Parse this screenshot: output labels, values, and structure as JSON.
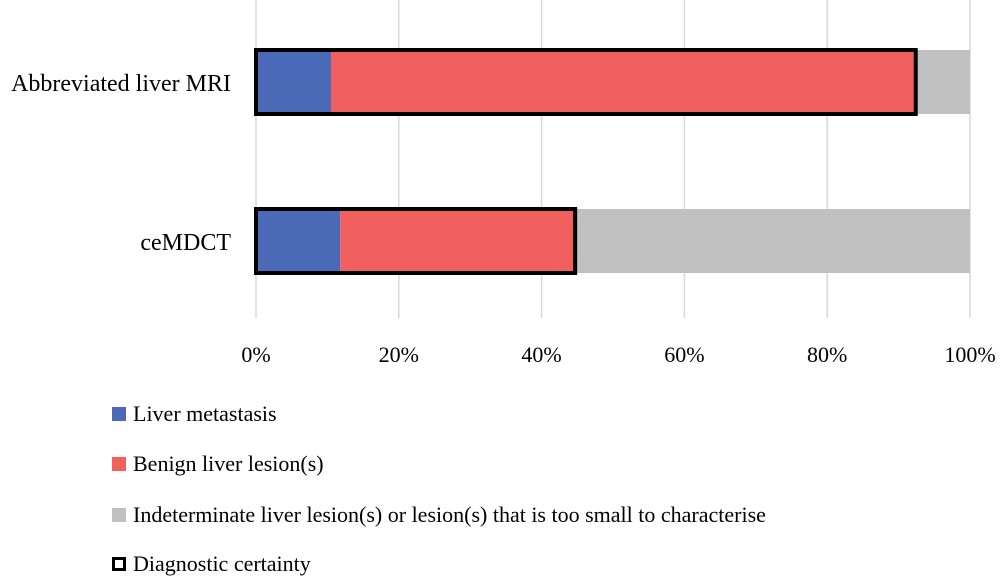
{
  "chart_data": {
    "type": "bar",
    "orientation": "horizontal",
    "stacked": true,
    "categories": [
      "Abbreviated liver MRI",
      "ceMDCT"
    ],
    "series": [
      {
        "name": "Liver metastasis",
        "color": "#4a6ab8",
        "values": [
          10.5,
          11.8
        ]
      },
      {
        "name": "Benign liver lesion(s)",
        "color": "#f25f5f",
        "values": [
          81.9,
          32.9
        ]
      },
      {
        "name": "Indeterminate liver lesion(s) or lesion(s) that is too small to characterise",
        "color": "#c0c0c0",
        "values": [
          7.6,
          55.3
        ]
      }
    ],
    "diagnostic_certainty": {
      "name": "Diagnostic certainty",
      "values": [
        92.4,
        44.7
      ]
    },
    "x_ticks": [
      "0%",
      "20%",
      "40%",
      "60%",
      "80%",
      "100%"
    ],
    "xlim": [
      0,
      100
    ],
    "grid": true,
    "legend_position": "bottom"
  }
}
